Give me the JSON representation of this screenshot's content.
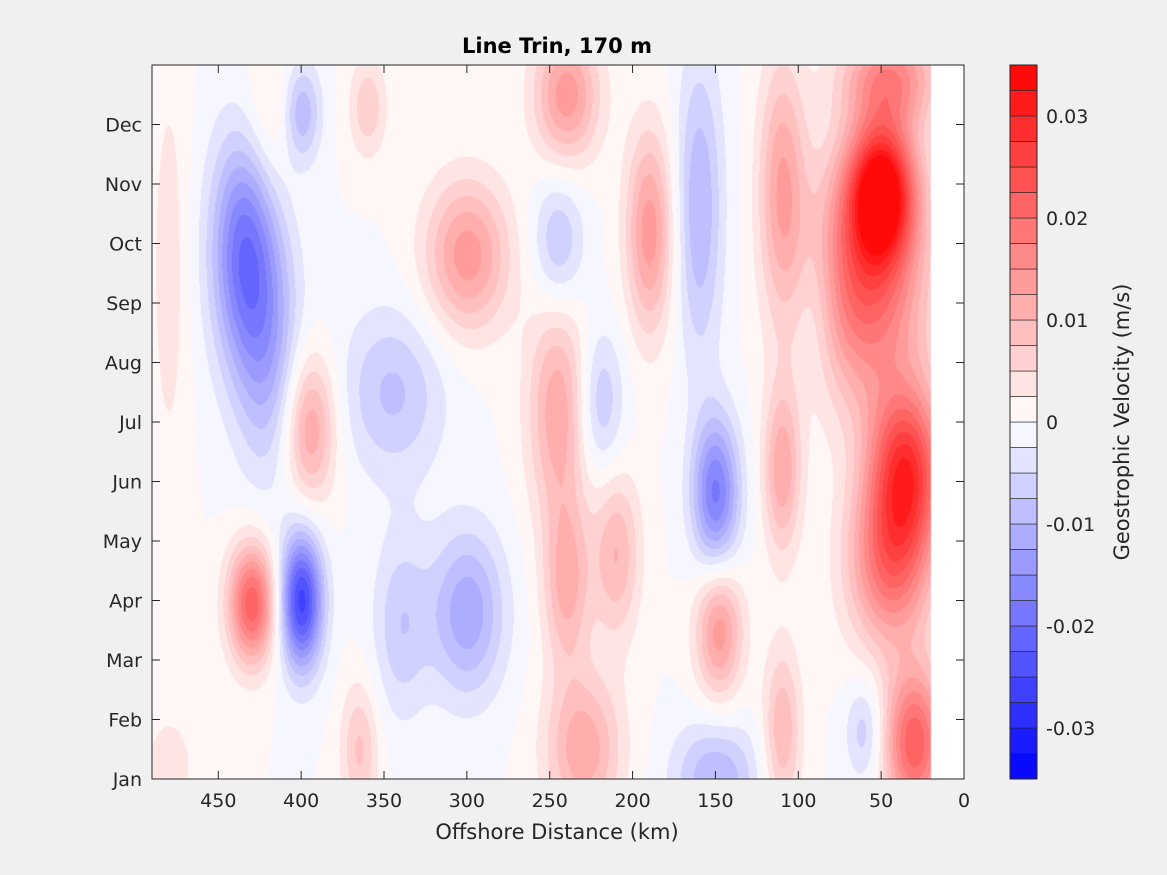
{
  "chart_data": {
    "type": "heatmap",
    "subtype": "filled-contour",
    "title": "Line Trin, 170 m",
    "xlabel": "Offshore Distance (km)",
    "xlim": [
      490,
      0
    ],
    "x_reversed": true,
    "xticks": [
      450,
      400,
      350,
      300,
      250,
      200,
      150,
      100,
      50,
      0
    ],
    "ylim": [
      1,
      13
    ],
    "yticks": [
      {
        "value": 1,
        "label": "Jan"
      },
      {
        "value": 2,
        "label": "Feb"
      },
      {
        "value": 3,
        "label": "Mar"
      },
      {
        "value": 4,
        "label": "Apr"
      },
      {
        "value": 5,
        "label": "May"
      },
      {
        "value": 6,
        "label": "Jun"
      },
      {
        "value": 7,
        "label": "Jul"
      },
      {
        "value": 8,
        "label": "Aug"
      },
      {
        "value": 9,
        "label": "Sep"
      },
      {
        "value": 10,
        "label": "Oct"
      },
      {
        "value": 11,
        "label": "Nov"
      },
      {
        "value": 12,
        "label": "Dec"
      }
    ],
    "data_xrange": [
      20,
      490
    ],
    "colorbar": {
      "label": "Geostrophic Velocity (m/s)",
      "range": [
        -0.035,
        0.035
      ],
      "levels": 28,
      "ticks": [
        {
          "value": 0.03,
          "label": "0.03"
        },
        {
          "value": 0.02,
          "label": "0.02"
        },
        {
          "value": 0.01,
          "label": "0.01"
        },
        {
          "value": 0,
          "label": "0"
        },
        {
          "value": -0.01,
          "label": "-0.01"
        },
        {
          "value": -0.02,
          "label": "-0.02"
        },
        {
          "value": -0.03,
          "label": "-0.03"
        }
      ],
      "colors": {
        "negative": "#0000ff",
        "zero": "#ffffff",
        "positive": "#ff0000"
      }
    },
    "features": [
      {
        "x": 50,
        "y": 10.9,
        "v": 0.032,
        "sx": 14,
        "sy": 0.8
      },
      {
        "x": 60,
        "y": 9.4,
        "v": 0.022,
        "sx": 25,
        "sy": 1.4
      },
      {
        "x": 35,
        "y": 6.2,
        "v": 0.026,
        "sx": 16,
        "sy": 1.0
      },
      {
        "x": 45,
        "y": 4.6,
        "v": 0.018,
        "sx": 18,
        "sy": 1.0
      },
      {
        "x": 30,
        "y": 1.6,
        "v": 0.022,
        "sx": 13,
        "sy": 0.9
      },
      {
        "x": 45,
        "y": 12.8,
        "v": 0.016,
        "sx": 20,
        "sy": 0.6
      },
      {
        "x": 430,
        "y": 3.95,
        "v": 0.022,
        "sx": 10,
        "sy": 0.7
      },
      {
        "x": 400,
        "y": 4.0,
        "v": -0.026,
        "sx": 9,
        "sy": 0.8
      },
      {
        "x": 435,
        "y": 9.9,
        "v": -0.018,
        "sx": 14,
        "sy": 1.4
      },
      {
        "x": 420,
        "y": 8.2,
        "v": -0.01,
        "sx": 14,
        "sy": 1.5
      },
      {
        "x": 400,
        "y": 12.2,
        "v": -0.01,
        "sx": 8,
        "sy": 0.6
      },
      {
        "x": 345,
        "y": 7.5,
        "v": -0.008,
        "sx": 22,
        "sy": 1.0
      },
      {
        "x": 300,
        "y": 3.8,
        "v": -0.012,
        "sx": 16,
        "sy": 1.0
      },
      {
        "x": 340,
        "y": 3.6,
        "v": -0.007,
        "sx": 12,
        "sy": 1.1
      },
      {
        "x": 395,
        "y": 6.9,
        "v": 0.013,
        "sx": 11,
        "sy": 0.9
      },
      {
        "x": 300,
        "y": 9.8,
        "v": 0.014,
        "sx": 18,
        "sy": 0.9
      },
      {
        "x": 360,
        "y": 12.3,
        "v": 0.007,
        "sx": 8,
        "sy": 0.6
      },
      {
        "x": 365,
        "y": 1.5,
        "v": 0.008,
        "sx": 8,
        "sy": 0.8
      },
      {
        "x": 240,
        "y": 12.5,
        "v": 0.014,
        "sx": 14,
        "sy": 0.8
      },
      {
        "x": 190,
        "y": 10.2,
        "v": 0.014,
        "sx": 10,
        "sy": 1.2
      },
      {
        "x": 245,
        "y": 7.2,
        "v": 0.012,
        "sx": 13,
        "sy": 1.3
      },
      {
        "x": 240,
        "y": 4.3,
        "v": 0.011,
        "sx": 10,
        "sy": 1.0
      },
      {
        "x": 210,
        "y": 4.8,
        "v": 0.01,
        "sx": 10,
        "sy": 1.0
      },
      {
        "x": 230,
        "y": 1.5,
        "v": 0.012,
        "sx": 16,
        "sy": 0.9
      },
      {
        "x": 245,
        "y": 10.0,
        "v": -0.008,
        "sx": 11,
        "sy": 0.8
      },
      {
        "x": 220,
        "y": 7.3,
        "v": -0.008,
        "sx": 10,
        "sy": 0.9
      },
      {
        "x": 160,
        "y": 10.6,
        "v": -0.01,
        "sx": 10,
        "sy": 1.8
      },
      {
        "x": 150,
        "y": 5.8,
        "v": -0.018,
        "sx": 10,
        "sy": 0.9
      },
      {
        "x": 150,
        "y": 1.0,
        "v": -0.01,
        "sx": 18,
        "sy": 0.7
      },
      {
        "x": 148,
        "y": 3.5,
        "v": 0.014,
        "sx": 10,
        "sy": 0.8
      },
      {
        "x": 110,
        "y": 11.0,
        "v": 0.012,
        "sx": 10,
        "sy": 1.5
      },
      {
        "x": 110,
        "y": 6.2,
        "v": 0.012,
        "sx": 8,
        "sy": 1.0
      },
      {
        "x": 110,
        "y": 1.8,
        "v": 0.01,
        "sx": 8,
        "sy": 1.0
      },
      {
        "x": 420,
        "y": 12.0,
        "v": 0.005,
        "sx": 12,
        "sy": 1.0
      },
      {
        "x": 480,
        "y": 9.6,
        "v": 0.004,
        "sx": 8,
        "sy": 2.5
      },
      {
        "x": 480,
        "y": 1.2,
        "v": 0.004,
        "sx": 12,
        "sy": 0.7
      },
      {
        "x": 60,
        "y": 1.8,
        "v": -0.007,
        "sx": 8,
        "sy": 0.6
      },
      {
        "x": 90,
        "y": 9.0,
        "v": -0.005,
        "sx": 10,
        "sy": 1.0
      }
    ]
  }
}
